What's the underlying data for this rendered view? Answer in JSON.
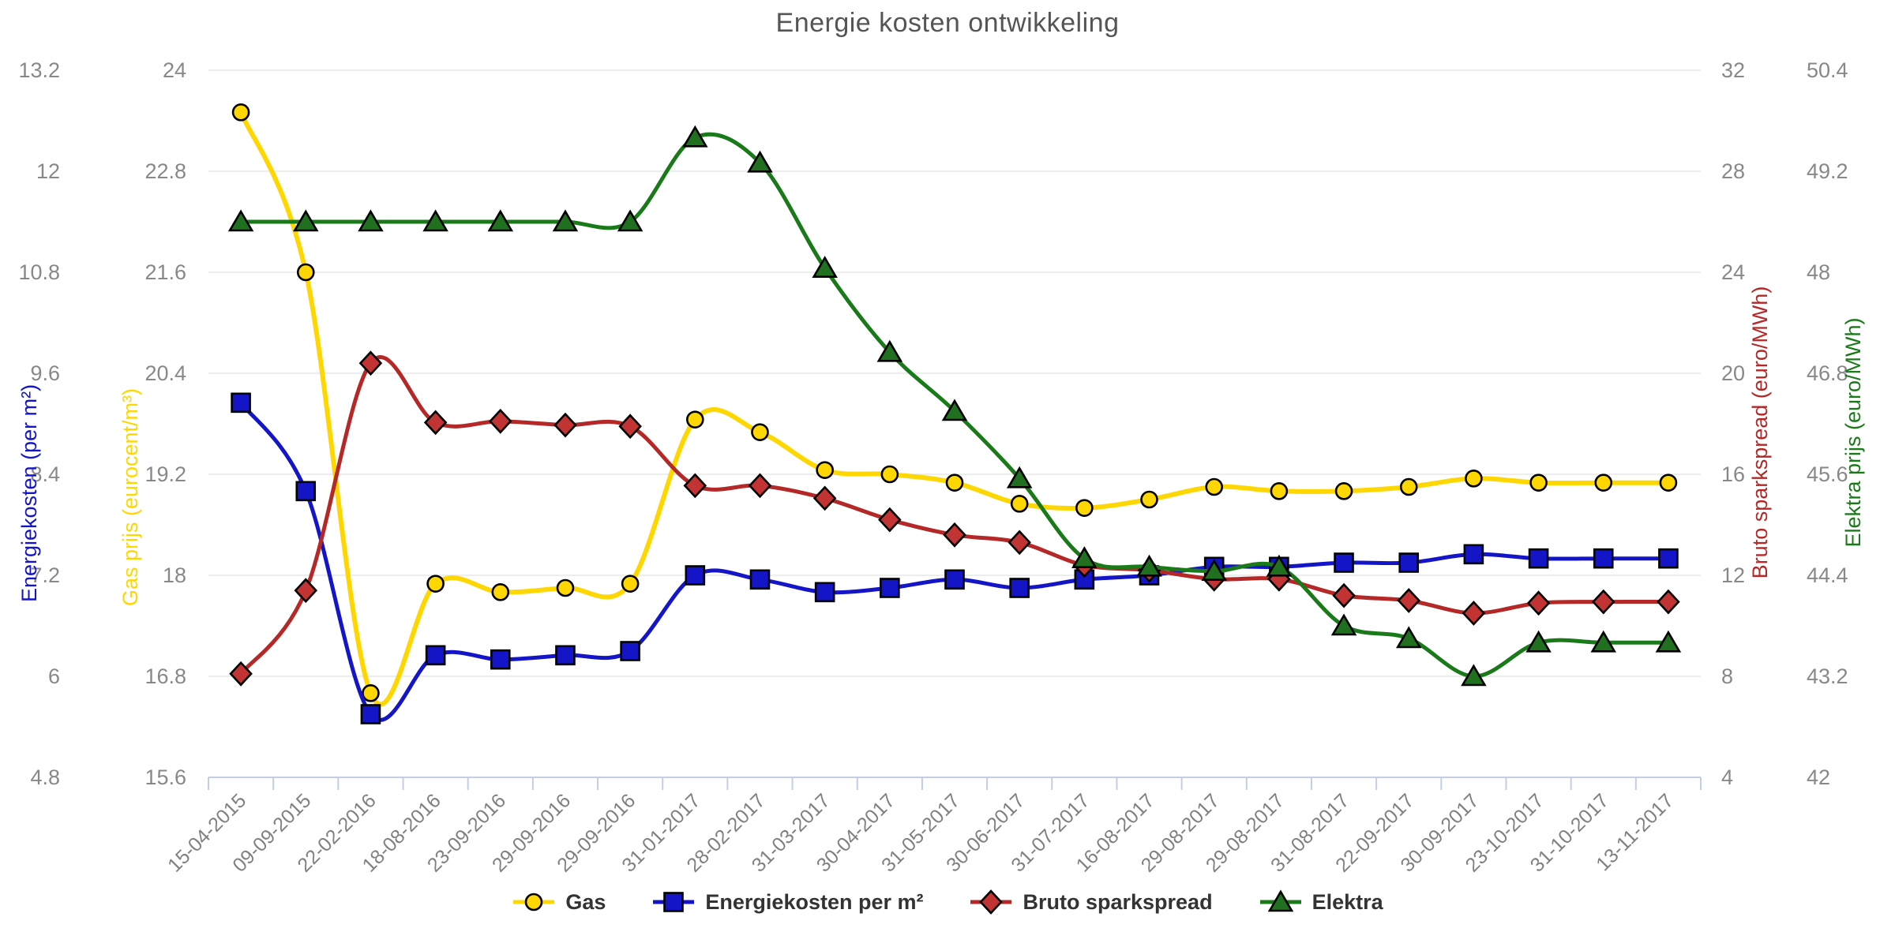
{
  "chart_data": {
    "type": "line",
    "title": "Energie kosten ontwikkeling",
    "legend_position": "bottom",
    "grid": true,
    "categories": [
      "15-04-2015",
      "09-09-2015",
      "22-02-2016",
      "18-08-2016",
      "23-09-2016",
      "29-09-2016",
      "29-09-2016",
      "31-01-2017",
      "28-02-2017",
      "31-03-2017",
      "30-04-2017",
      "31-05-2017",
      "30-06-2017",
      "31-07-2017",
      "16-08-2017",
      "29-08-2017",
      "29-08-2017",
      "31-08-2017",
      "22-09-2017",
      "30-09-2017",
      "23-10-2017",
      "31-10-2017",
      "13-11-2017"
    ],
    "axes": {
      "energiekosten": {
        "title": "Energiekosten (per m²)",
        "color": "#1515C8",
        "min": 4.8,
        "max": 13.2,
        "ticks": [
          "13.2",
          "12",
          "10.8",
          "9.6",
          "8.4",
          "7.2",
          "6",
          "4.8"
        ],
        "side": "left"
      },
      "gas": {
        "title": "Gas prijs (eurocent/m³)",
        "color": "#FFD700",
        "min": 15.6,
        "max": 24,
        "ticks": [
          "24",
          "22.8",
          "21.6",
          "20.4",
          "19.2",
          "18",
          "16.8",
          "15.6"
        ],
        "side": "left"
      },
      "sparkspread": {
        "title": "Bruto sparkspread (euro/MWh)",
        "color": "#B42828",
        "min": 4,
        "max": 32,
        "ticks": [
          "32",
          "28",
          "24",
          "20",
          "16",
          "12",
          "8",
          "4"
        ],
        "side": "right"
      },
      "elektra": {
        "title": "Elektra prijs (euro/MWh)",
        "color": "#1A7A1A",
        "min": 42,
        "max": 50.4,
        "ticks": [
          "50.4",
          "49.2",
          "48",
          "46.8",
          "45.6",
          "44.4",
          "43.2",
          "42"
        ],
        "side": "right"
      }
    },
    "series": [
      {
        "name": "Gas",
        "axis": "gas",
        "marker": "circle",
        "color": "#FFD700",
        "marker_fill": "#FFD700",
        "line_width": 6,
        "values": [
          23.5,
          21.6,
          16.6,
          17.9,
          17.8,
          17.85,
          17.9,
          19.85,
          19.7,
          19.25,
          19.2,
          19.1,
          18.85,
          18.8,
          18.9,
          19.05,
          19.0,
          19.0,
          19.05,
          19.15,
          19.1,
          19.1,
          19.1
        ]
      },
      {
        "name": "Energiekosten per m²",
        "axis": "energiekosten",
        "marker": "square",
        "color": "#1515C8",
        "marker_fill": "#1515C8",
        "line_width": 5,
        "values": [
          9.25,
          8.2,
          5.55,
          6.25,
          6.2,
          6.25,
          6.3,
          7.2,
          7.15,
          7.0,
          7.05,
          7.15,
          7.05,
          7.15,
          7.2,
          7.3,
          7.3,
          7.35,
          7.35,
          7.45,
          7.4,
          7.4,
          7.4
        ]
      },
      {
        "name": "Bruto sparkspread",
        "axis": "sparkspread",
        "marker": "diamond",
        "color": "#B42828",
        "marker_fill": "#C23434",
        "line_width": 5,
        "values": [
          8.1,
          11.4,
          20.4,
          18.05,
          18.1,
          17.95,
          17.9,
          15.55,
          15.55,
          15.05,
          14.2,
          13.6,
          13.3,
          12.4,
          12.2,
          11.85,
          11.85,
          11.2,
          11.0,
          10.5,
          10.9,
          10.95,
          10.95
        ]
      },
      {
        "name": "Elektra",
        "axis": "elektra",
        "marker": "triangle",
        "color": "#1A7A1A",
        "marker_fill": "#20701F",
        "line_width": 5,
        "values": [
          48.6,
          48.6,
          48.6,
          48.6,
          48.6,
          48.6,
          48.6,
          49.6,
          49.3,
          48.05,
          47.05,
          46.35,
          45.55,
          44.6,
          44.5,
          44.45,
          44.5,
          43.8,
          43.65,
          43.2,
          43.6,
          43.6,
          43.6
        ]
      }
    ],
    "colors": {
      "gridline": "#E7E7E7",
      "axis_line": "#C3CEE2",
      "tick_text": "#888888",
      "date_text": "#808080",
      "title_text": "#555555",
      "marker_stroke": "#000000"
    }
  }
}
